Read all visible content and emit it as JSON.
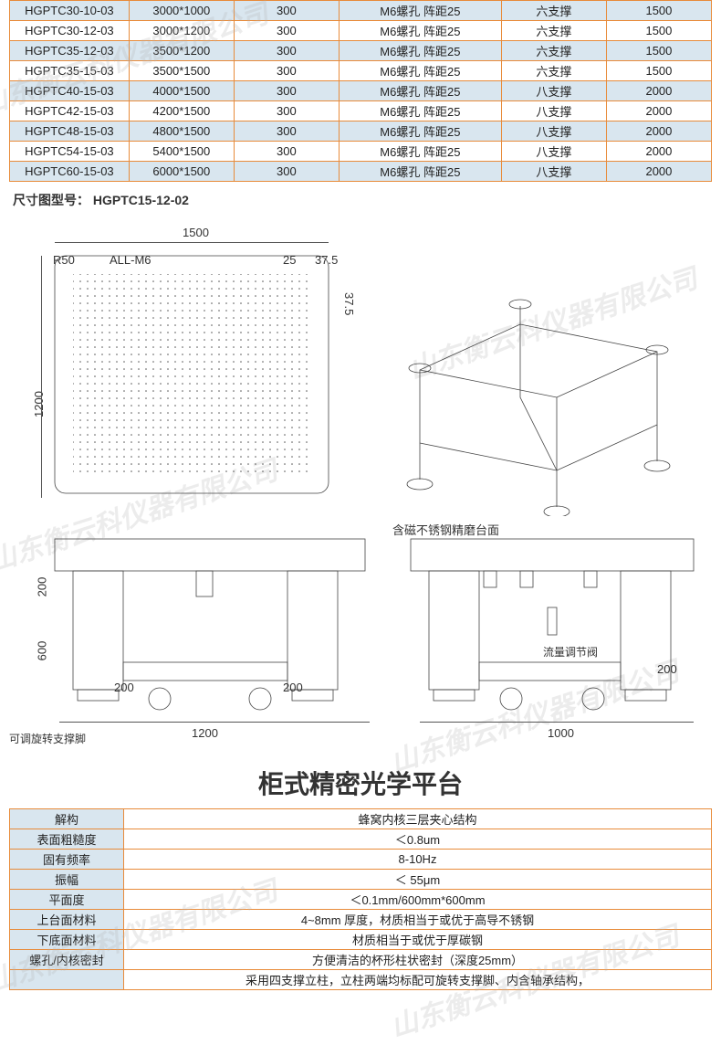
{
  "colors": {
    "border": "#e88b3a",
    "altRow": "#d9e6ef",
    "bg": "#ffffff",
    "text": "#222222",
    "watermark": "rgba(180,180,180,0.25)"
  },
  "topTable": {
    "rows": [
      {
        "c0": "HGPTC30-10-03",
        "c1": "3000*1000",
        "c2": "300",
        "c3": "M6螺孔 阵距25",
        "c4": "六支撑",
        "c5": "1500",
        "alt": true
      },
      {
        "c0": "HGPTC30-12-03",
        "c1": "3000*1200",
        "c2": "300",
        "c3": "M6螺孔 阵距25",
        "c4": "六支撑",
        "c5": "1500",
        "alt": false
      },
      {
        "c0": "HGPTC35-12-03",
        "c1": "3500*1200",
        "c2": "300",
        "c3": "M6螺孔 阵距25",
        "c4": "六支撑",
        "c5": "1500",
        "alt": true
      },
      {
        "c0": "HGPTC35-15-03",
        "c1": "3500*1500",
        "c2": "300",
        "c3": "M6螺孔 阵距25",
        "c4": "六支撑",
        "c5": "1500",
        "alt": false
      },
      {
        "c0": "HGPTC40-15-03",
        "c1": "4000*1500",
        "c2": "300",
        "c3": "M6螺孔 阵距25",
        "c4": "八支撑",
        "c5": "2000",
        "alt": true
      },
      {
        "c0": "HGPTC42-15-03",
        "c1": "4200*1500",
        "c2": "300",
        "c3": "M6螺孔 阵距25",
        "c4": "八支撑",
        "c5": "2000",
        "alt": false
      },
      {
        "c0": "HGPTC48-15-03",
        "c1": "4800*1500",
        "c2": "300",
        "c3": "M6螺孔 阵距25",
        "c4": "八支撑",
        "c5": "2000",
        "alt": true
      },
      {
        "c0": "HGPTC54-15-03",
        "c1": "5400*1500",
        "c2": "300",
        "c3": "M6螺孔 阵距25",
        "c4": "八支撑",
        "c5": "2000",
        "alt": false
      },
      {
        "c0": "HGPTC60-15-03",
        "c1": "6000*1500",
        "c2": "300",
        "c3": "M6螺孔 阵距25",
        "c4": "八支撑",
        "c5": "2000",
        "alt": true
      }
    ]
  },
  "sectionLabel": "尺寸图型号：  HGPTC15-12-02",
  "diagram": {
    "top_width": "1500",
    "r50": "R50",
    "all_m6": "ALL-M6",
    "gap25": "25",
    "edge375_h": "37.5",
    "edge375_v": "37.5",
    "height1200": "1200",
    "front_200a": "200",
    "front_200b": "200",
    "front_200c": "200",
    "front_600": "600",
    "front_1200": "1200",
    "surface_label": "含磁不锈钢精磨台面",
    "valve_label": "流量调节阀",
    "side_200": "200",
    "side_1000": "1000",
    "foot_label": "可调旋转支撑脚"
  },
  "bigTitle": "柜式精密光学平台",
  "specTable": {
    "rows": [
      {
        "label": "解构",
        "value": "蜂窝内核三层夹心结构"
      },
      {
        "label": "表面粗糙度",
        "value": "＜0.8um"
      },
      {
        "label": "固有频率",
        "value": "8-10Hz"
      },
      {
        "label": "振幅",
        "value": "＜ 55μm"
      },
      {
        "label": "平面度",
        "value": "＜0.1mm/600mm*600mm"
      },
      {
        "label": "上台面材料",
        "value": "4~8mm 厚度，材质相当于或优于高导不锈钢"
      },
      {
        "label": "下底面材料",
        "value": "材质相当于或优于厚碳钢"
      },
      {
        "label": "螺孔/内核密封",
        "value": "方便清洁的杯形柱状密封（深度25mm）"
      },
      {
        "label": "",
        "value": "采用四支撑立柱，立柱两端均标配可旋转支撑脚、内含轴承结构，"
      }
    ]
  },
  "watermarkText": "山东衡云科仪器有限公司"
}
